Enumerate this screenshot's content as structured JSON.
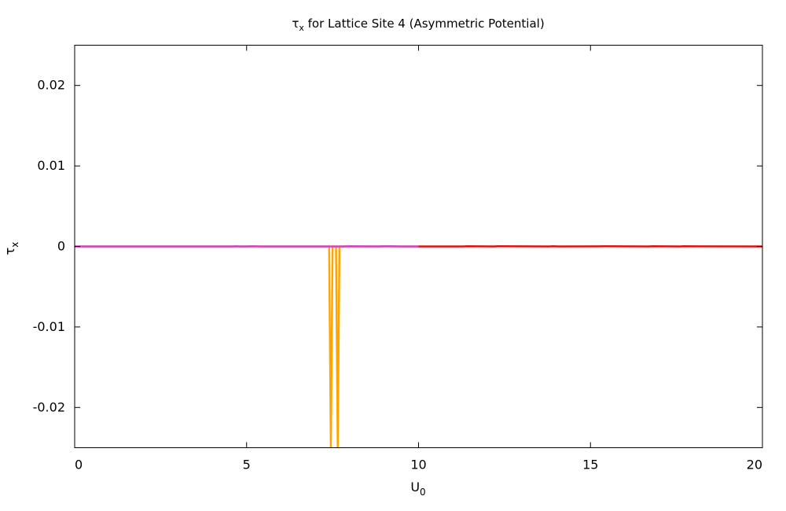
{
  "chart_data": {
    "type": "line",
    "title": {
      "main": "τ",
      "sub": "x",
      "rest": " for Lattice Site 4 (Asymmetric Potential)"
    },
    "xlabel": {
      "main": "U",
      "sub": "0"
    },
    "ylabel": {
      "main": "τ",
      "sub": "x"
    },
    "xlim": [
      0,
      20
    ],
    "ylim": [
      -0.025,
      0.025
    ],
    "x_ticks": [
      0,
      5,
      10,
      15,
      20
    ],
    "x_tick_labels": [
      "0",
      "5",
      "10",
      "15",
      "20"
    ],
    "y_ticks": [
      -0.02,
      -0.01,
      0,
      0.01,
      0.02
    ],
    "y_tick_labels": [
      "-0.02",
      "-0.01",
      "0",
      "0.01",
      "0.02"
    ],
    "grid": false,
    "legend": "none",
    "series": [
      {
        "color": "#ffa500",
        "x": [
          0,
          7.4,
          7.45,
          7.5,
          7.55,
          7.6,
          7.65,
          7.7,
          10
        ],
        "y": [
          0,
          0,
          -0.025,
          0,
          0,
          0,
          -0.025,
          0,
          0
        ]
      },
      {
        "color": "#cc44cc",
        "x": [
          0,
          4.6,
          4.7,
          4.8,
          5.0,
          5.2,
          5.4,
          7.8,
          8.0,
          8.8,
          9.0,
          9.2,
          9.5,
          10
        ],
        "y": [
          0,
          0,
          2e-05,
          0,
          0,
          3e-05,
          0,
          0,
          2e-05,
          0,
          3e-05,
          2e-05,
          0,
          0
        ]
      },
      {
        "color": "#dd1111",
        "x": [
          10,
          11.3,
          11.4,
          12.2,
          12.3,
          13.8,
          13.9,
          14.1,
          15.4,
          16.7,
          16.8,
          17.6,
          17.7,
          20
        ],
        "y": [
          0,
          0,
          2e-05,
          0,
          2e-05,
          0,
          2e-05,
          0,
          2e-05,
          0,
          2e-05,
          0,
          2e-05,
          0
        ]
      }
    ]
  }
}
